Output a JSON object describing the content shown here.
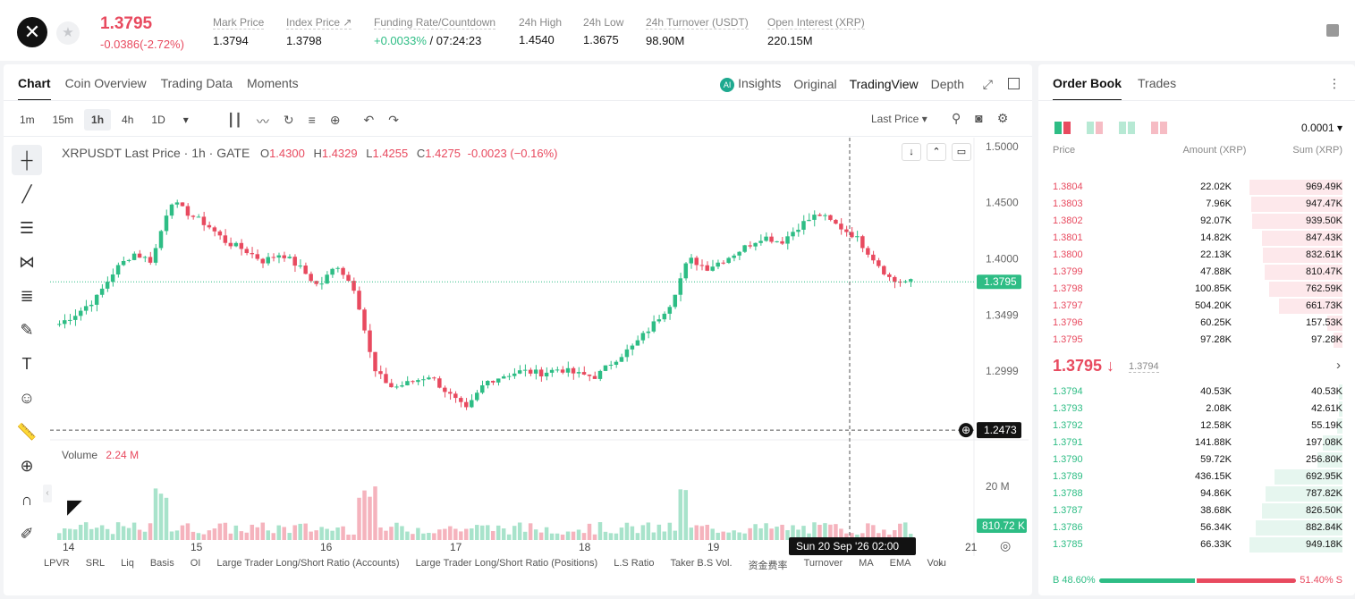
{
  "header": {
    "logo_glyph": "✕",
    "last_price": "1.3795",
    "change": "-0.0386(-2.72%)",
    "stats": [
      {
        "label": "Mark Price",
        "value": "1.3794",
        "color": "default"
      },
      {
        "label": "Index Price ↗",
        "value": "1.3798",
        "color": "default"
      },
      {
        "label": "Funding Rate/Countdown",
        "value": "+0.0033%",
        "extra": " / 07:24:23",
        "color": "green"
      },
      {
        "label": "24h High",
        "value": "1.4540",
        "color": "default"
      },
      {
        "label": "24h Low",
        "value": "1.3675",
        "color": "default"
      },
      {
        "label": "24h Turnover (USDT)",
        "value": "98.90M",
        "color": "default"
      },
      {
        "label": "Open Interest (XRP)",
        "value": "220.15M",
        "color": "default"
      }
    ]
  },
  "chart_tabs": {
    "left": [
      "Chart",
      "Coin Overview",
      "Trading Data",
      "Moments"
    ],
    "right": [
      "Insights",
      "Original",
      "TradingView",
      "Depth"
    ],
    "ai_badge": "AI"
  },
  "intervals": [
    "1m",
    "15m",
    "1h",
    "4h",
    "1D"
  ],
  "active_interval": "1h",
  "price_source": "Last Price ▾",
  "legend": {
    "symbol": "XRPUSDT Last Price · 1h · GATE",
    "o": "O",
    "o_val": "1.4300",
    "h": "H",
    "h_val": "1.4329",
    "l": "L",
    "l_val": "1.4255",
    "c": "C",
    "c_val": "1.4275",
    "chg": "-0.0023 (−0.16%)"
  },
  "volume_label": "Volume",
  "volume_value": "2.24 M",
  "price_axis_labels": [
    "1.5000",
    "1.4500",
    "1.4000",
    "1.3499",
    "1.2999"
  ],
  "current_price_tag": "1.3795",
  "crosshair_price_tag": "1.2473",
  "volume_axis_label": "20 M",
  "volume_tag": "810.72 K",
  "time_labels": [
    "14",
    "15",
    "16",
    "17",
    "18",
    "19",
    "21"
  ],
  "crosshair_time": "Sun 20 Sep '26   02:00",
  "indicator_tabs": [
    "LPVR",
    "SRL",
    "Liq",
    "Basis",
    "OI",
    "Large Trader Long/Short Ratio (Accounts)",
    "Large Trader Long/Short Ratio (Positions)",
    "L.S Ratio",
    "Taker B.S Vol.",
    "资金费率",
    "Turnover",
    "MA",
    "EMA",
    "Volu"
  ],
  "chart_data": {
    "type": "candlestick",
    "interval": "1h",
    "y_range": [
      1.245,
      1.5
    ],
    "close_series": [
      1.342,
      1.352,
      1.365,
      1.39,
      1.405,
      1.398,
      1.452,
      1.44,
      1.43,
      1.415,
      1.408,
      1.398,
      1.405,
      1.392,
      1.375,
      1.395,
      1.372,
      1.3,
      1.285,
      1.29,
      1.296,
      1.28,
      1.265,
      1.29,
      1.296,
      1.3,
      1.298,
      1.302,
      1.297,
      1.295,
      1.31,
      1.322,
      1.34,
      1.36,
      1.4,
      1.392,
      1.4,
      1.41,
      1.42,
      1.415,
      1.43,
      1.44,
      1.43,
      1.42,
      1.4,
      1.38,
      1.3795
    ]
  },
  "orderbook": {
    "tabs": [
      "Order Book",
      "Trades"
    ],
    "tick": "0.0001 ▾",
    "headers": [
      "Price",
      "Amount (XRP)",
      "Sum (XRP)"
    ],
    "asks": [
      {
        "price": "1.3804",
        "amount": "22.02K",
        "sum": "969.49K",
        "amt_pct": 0,
        "sum_pct": 100
      },
      {
        "price": "1.3803",
        "amount": "7.96K",
        "sum": "947.47K",
        "amt_pct": 0,
        "sum_pct": 98
      },
      {
        "price": "1.3802",
        "amount": "92.07K",
        "sum": "939.50K",
        "amt_pct": 0,
        "sum_pct": 97
      },
      {
        "price": "1.3801",
        "amount": "14.82K",
        "sum": "847.43K",
        "amt_pct": 0,
        "sum_pct": 87
      },
      {
        "price": "1.3800",
        "amount": "22.13K",
        "sum": "832.61K",
        "amt_pct": 0,
        "sum_pct": 86
      },
      {
        "price": "1.3799",
        "amount": "47.88K",
        "sum": "810.47K",
        "amt_pct": 0,
        "sum_pct": 84
      },
      {
        "price": "1.3798",
        "amount": "100.85K",
        "sum": "762.59K",
        "amt_pct": 0,
        "sum_pct": 79
      },
      {
        "price": "1.3797",
        "amount": "504.20K",
        "sum": "661.73K",
        "amt_pct": 0,
        "sum_pct": 68
      },
      {
        "price": "1.3796",
        "amount": "60.25K",
        "sum": "157.53K",
        "amt_pct": 0,
        "sum_pct": 16
      },
      {
        "price": "1.3795",
        "amount": "97.28K",
        "sum": "97.28K",
        "amt_pct": 0,
        "sum_pct": 10
      }
    ],
    "mid_price": "1.3795 ↓",
    "mark_price": "1.3794",
    "bids": [
      {
        "price": "1.3794",
        "amount": "40.53K",
        "sum": "40.53K",
        "sum_pct": 4
      },
      {
        "price": "1.3793",
        "amount": "2.08K",
        "sum": "42.61K",
        "sum_pct": 4
      },
      {
        "price": "1.3792",
        "amount": "12.58K",
        "sum": "55.19K",
        "sum_pct": 6
      },
      {
        "price": "1.3791",
        "amount": "141.88K",
        "sum": "197.08K",
        "sum_pct": 21
      },
      {
        "price": "1.3790",
        "amount": "59.72K",
        "sum": "256.80K",
        "sum_pct": 27
      },
      {
        "price": "1.3789",
        "amount": "436.15K",
        "sum": "692.95K",
        "sum_pct": 73
      },
      {
        "price": "1.3788",
        "amount": "94.86K",
        "sum": "787.82K",
        "sum_pct": 83
      },
      {
        "price": "1.3787",
        "amount": "38.68K",
        "sum": "826.50K",
        "sum_pct": 87
      },
      {
        "price": "1.3786",
        "amount": "56.34K",
        "sum": "882.84K",
        "sum_pct": 93
      },
      {
        "price": "1.3785",
        "amount": "66.33K",
        "sum": "949.18K",
        "sum_pct": 100
      }
    ],
    "buy_label": "B 48.60%",
    "sell_label": "51.40% S",
    "buy_ratio": 0.486
  },
  "colors": {
    "up": "#2ebd85",
    "down": "#e84a5f"
  }
}
